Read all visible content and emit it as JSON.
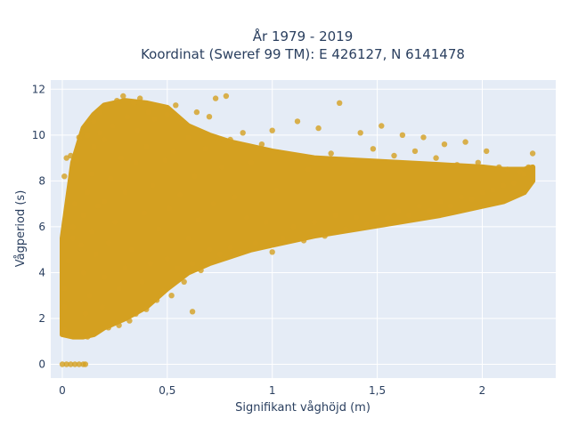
{
  "chart_data": {
    "type": "scatter",
    "title_line1": "År 1979 - 2019",
    "title_line2": "Koordinat (Sweref 99 TM): E 426127, N 6141478",
    "xlabel": "Signifikant våghöjd (m)",
    "ylabel": "Vågperiod (s)",
    "xlim": [
      -0.055,
      2.35
    ],
    "ylim": [
      -0.6,
      12.4
    ],
    "x_ticks": [
      0,
      0.5,
      1,
      1.5,
      2
    ],
    "x_tick_labels": [
      "0",
      "0,5",
      "1",
      "1,5",
      "2"
    ],
    "y_ticks": [
      0,
      2,
      4,
      6,
      8,
      10,
      12
    ],
    "y_tick_labels": [
      "0",
      "2",
      "4",
      "6",
      "8",
      "10",
      "12"
    ],
    "grid": true,
    "colors": {
      "marker": "#D4A020",
      "plot_bg": "#E5ECF6",
      "grid": "#ffffff",
      "text": "#2a3f5f"
    },
    "series": [
      {
        "marker_opacity": 0.8,
        "points": [
          [
            0.0,
            0.0
          ],
          [
            0.02,
            0.0
          ],
          [
            0.04,
            0.0
          ],
          [
            0.06,
            0.0
          ],
          [
            0.08,
            0.0
          ],
          [
            0.1,
            0.0
          ],
          [
            0.11,
            0.0
          ],
          [
            0.01,
            1.5
          ],
          [
            0.01,
            2.5
          ],
          [
            0.01,
            3.3
          ],
          [
            0.01,
            8.2
          ],
          [
            0.02,
            9.0
          ],
          [
            0.03,
            4.5
          ],
          [
            0.04,
            9.1
          ],
          [
            0.05,
            5.5
          ],
          [
            0.05,
            6.0
          ],
          [
            0.06,
            7.0
          ],
          [
            0.07,
            8.9
          ],
          [
            0.08,
            9.9
          ],
          [
            0.09,
            5.2
          ],
          [
            0.1,
            4.0
          ],
          [
            0.1,
            6.5
          ],
          [
            0.11,
            2.2
          ],
          [
            0.12,
            1.2
          ],
          [
            0.12,
            7.5
          ],
          [
            0.12,
            10.0
          ],
          [
            0.13,
            3.0
          ],
          [
            0.14,
            5.8
          ],
          [
            0.14,
            8.3
          ],
          [
            0.15,
            9.5
          ],
          [
            0.15,
            10.6
          ],
          [
            0.16,
            1.4
          ],
          [
            0.16,
            4.8
          ],
          [
            0.17,
            6.9
          ],
          [
            0.18,
            10.1
          ],
          [
            0.18,
            11.0
          ],
          [
            0.19,
            2.5
          ],
          [
            0.2,
            3.8
          ],
          [
            0.2,
            7.1
          ],
          [
            0.2,
            9.8
          ],
          [
            0.21,
            11.2
          ],
          [
            0.22,
            1.6
          ],
          [
            0.22,
            5.3
          ],
          [
            0.23,
            8.1
          ],
          [
            0.24,
            10.4
          ],
          [
            0.25,
            6.2
          ],
          [
            0.26,
            11.5
          ],
          [
            0.27,
            1.7
          ],
          [
            0.27,
            3.3
          ],
          [
            0.28,
            9.0
          ],
          [
            0.29,
            11.7
          ],
          [
            0.3,
            4.2
          ],
          [
            0.3,
            7.5
          ],
          [
            0.31,
            10.8
          ],
          [
            0.32,
            1.9
          ],
          [
            0.33,
            5.0
          ],
          [
            0.34,
            11.4
          ],
          [
            0.35,
            2.2
          ],
          [
            0.35,
            8.8
          ],
          [
            0.36,
            10.2
          ],
          [
            0.37,
            11.6
          ],
          [
            0.38,
            3.6
          ],
          [
            0.39,
            6.6
          ],
          [
            0.4,
            2.4
          ],
          [
            0.4,
            9.5
          ],
          [
            0.41,
            11.0
          ],
          [
            0.42,
            4.4
          ],
          [
            0.43,
            7.8
          ],
          [
            0.44,
            10.7
          ],
          [
            0.45,
            2.8
          ],
          [
            0.46,
            5.9
          ],
          [
            0.47,
            11.2
          ],
          [
            0.48,
            3.2
          ],
          [
            0.49,
            8.9
          ],
          [
            0.5,
            4.6
          ],
          [
            0.5,
            10.9
          ],
          [
            0.51,
            6.8
          ],
          [
            0.52,
            3.0
          ],
          [
            0.53,
            9.3
          ],
          [
            0.54,
            11.3
          ],
          [
            0.55,
            4.2
          ],
          [
            0.56,
            7.4
          ],
          [
            0.57,
            10.6
          ],
          [
            0.58,
            3.6
          ],
          [
            0.6,
            5.5
          ],
          [
            0.6,
            9.9
          ],
          [
            0.62,
            2.3
          ],
          [
            0.62,
            4.4
          ],
          [
            0.63,
            8.2
          ],
          [
            0.64,
            11.0
          ],
          [
            0.65,
            6.3
          ],
          [
            0.66,
            4.1
          ],
          [
            0.68,
            9.4
          ],
          [
            0.7,
            5.0
          ],
          [
            0.7,
            10.8
          ],
          [
            0.72,
            7.0
          ],
          [
            0.73,
            11.6
          ],
          [
            0.75,
            4.8
          ],
          [
            0.76,
            8.6
          ],
          [
            0.78,
            11.7
          ],
          [
            0.8,
            5.1
          ],
          [
            0.8,
            9.8
          ],
          [
            0.82,
            7.3
          ],
          [
            0.85,
            4.9
          ],
          [
            0.86,
            10.1
          ],
          [
            0.88,
            6.4
          ],
          [
            0.9,
            8.8
          ],
          [
            0.92,
            5.3
          ],
          [
            0.95,
            9.6
          ],
          [
            0.97,
            6.2
          ],
          [
            1.0,
            4.9
          ],
          [
            1.0,
            10.2
          ],
          [
            1.02,
            7.6
          ],
          [
            1.05,
            5.5
          ],
          [
            1.08,
            9.1
          ],
          [
            1.1,
            6.0
          ],
          [
            1.12,
            10.6
          ],
          [
            1.15,
            5.4
          ],
          [
            1.17,
            8.5
          ],
          [
            1.2,
            6.2
          ],
          [
            1.22,
            10.3
          ],
          [
            1.25,
            5.6
          ],
          [
            1.28,
            9.2
          ],
          [
            1.3,
            6.5
          ],
          [
            1.32,
            11.4
          ],
          [
            1.35,
            5.9
          ],
          [
            1.38,
            8.9
          ],
          [
            1.4,
            6.4
          ],
          [
            1.42,
            10.1
          ],
          [
            1.45,
            6.1
          ],
          [
            1.48,
            9.4
          ],
          [
            1.5,
            6.6
          ],
          [
            1.52,
            10.4
          ],
          [
            1.55,
            6.4
          ],
          [
            1.58,
            9.1
          ],
          [
            1.6,
            6.7
          ],
          [
            1.62,
            10.0
          ],
          [
            1.65,
            6.5
          ],
          [
            1.68,
            9.3
          ],
          [
            1.7,
            6.9
          ],
          [
            1.72,
            9.9
          ],
          [
            1.75,
            6.7
          ],
          [
            1.78,
            9.0
          ],
          [
            1.8,
            7.1
          ],
          [
            1.82,
            9.6
          ],
          [
            1.85,
            6.9
          ],
          [
            1.88,
            8.7
          ],
          [
            1.9,
            7.3
          ],
          [
            1.92,
            9.7
          ],
          [
            1.95,
            7.2
          ],
          [
            1.98,
            8.8
          ],
          [
            2.0,
            7.5
          ],
          [
            2.02,
            9.3
          ],
          [
            2.05,
            7.6
          ],
          [
            2.08,
            8.6
          ],
          [
            2.1,
            7.8
          ],
          [
            2.12,
            8.5
          ],
          [
            2.15,
            7.9
          ],
          [
            2.18,
            8.4
          ],
          [
            2.2,
            8.3
          ],
          [
            2.22,
            8.6
          ],
          [
            2.24,
            9.2
          ]
        ],
        "band_envelope": {
          "x": [
            0.0,
            0.05,
            0.1,
            0.15,
            0.2,
            0.3,
            0.4,
            0.5,
            0.6,
            0.7,
            0.8,
            0.9,
            1.0,
            1.2,
            1.4,
            1.6,
            1.8,
            2.0,
            2.1,
            2.2,
            2.24
          ],
          "y_low": [
            1.3,
            1.2,
            1.2,
            1.3,
            1.6,
            2.0,
            2.5,
            3.3,
            4.0,
            4.4,
            4.7,
            5.0,
            5.2,
            5.6,
            5.9,
            6.2,
            6.5,
            6.9,
            7.1,
            7.5,
            8.0
          ],
          "y_high": [
            5.5,
            8.8,
            10.3,
            10.9,
            11.3,
            11.5,
            11.4,
            11.2,
            10.4,
            10.0,
            9.7,
            9.5,
            9.3,
            9.0,
            8.9,
            8.8,
            8.7,
            8.6,
            8.5,
            8.5,
            8.6
          ]
        }
      }
    ]
  }
}
